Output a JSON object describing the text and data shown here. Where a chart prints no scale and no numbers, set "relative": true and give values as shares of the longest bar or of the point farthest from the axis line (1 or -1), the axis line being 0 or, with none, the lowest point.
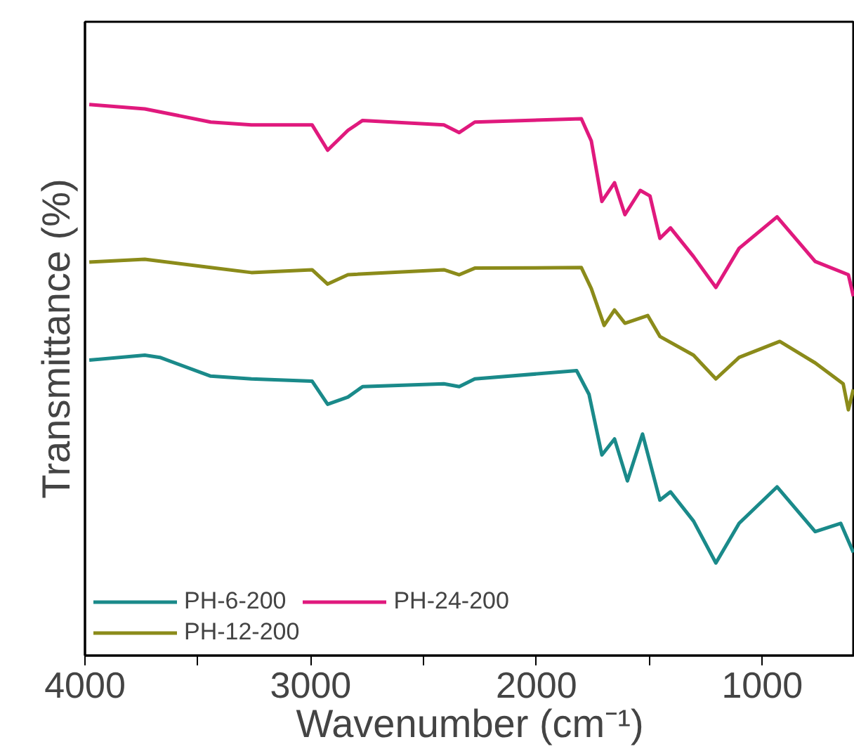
{
  "chart_data": {
    "type": "line",
    "relative": true,
    "xlabel": "Wavenumber (cm⁻¹)",
    "ylabel": "Transmittance (%)",
    "xlim": [
      4000,
      590
    ],
    "xticks": [
      4000,
      {
        "value": 3500,
        "label": null
      },
      3000,
      {
        "value": 2500,
        "label": null
      },
      2000,
      {
        "value": 1500,
        "label": null
      },
      1000
    ],
    "tick_labels": "x",
    "legend": "bottom left",
    "grid": false,
    "line_style": "solid",
    "series": [
      {
        "name": "PH-6-200",
        "color": "#1a8a8a",
        "x": [
          3981,
          3735,
          3668,
          3443,
          3263,
          2994,
          2925,
          2835,
          2770,
          2410,
          2342,
          2273,
          1822,
          1767,
          1710,
          1654,
          1597,
          1530,
          1453,
          1406,
          1304,
          1205,
          1102,
          934,
          765,
          652,
          596
        ],
        "values": [
          0.536,
          0.545,
          0.541,
          0.507,
          0.502,
          0.498,
          0.456,
          0.469,
          0.488,
          0.493,
          0.488,
          0.502,
          0.517,
          0.474,
          0.364,
          0.393,
          0.317,
          0.402,
          0.282,
          0.297,
          0.244,
          0.168,
          0.24,
          0.306,
          0.225,
          0.24,
          0.187
        ]
      },
      {
        "name": "PH-12-200",
        "color": "#8b8b1a",
        "x": [
          3981,
          3735,
          3443,
          3263,
          2994,
          2925,
          2835,
          2410,
          2342,
          2273,
          1801,
          1757,
          1700,
          1654,
          1608,
          1507,
          1453,
          1304,
          1205,
          1102,
          922,
          765,
          641,
          618,
          596
        ],
        "values": [
          0.714,
          0.719,
          0.704,
          0.695,
          0.7,
          0.674,
          0.691,
          0.7,
          0.691,
          0.703,
          0.704,
          0.666,
          0.599,
          0.627,
          0.603,
          0.617,
          0.579,
          0.545,
          0.502,
          0.541,
          0.57,
          0.531,
          0.493,
          0.446,
          0.483
        ]
      },
      {
        "name": "PH-24-200",
        "color": "#e0197d",
        "x": [
          3981,
          3735,
          3443,
          3263,
          2994,
          2925,
          2835,
          2770,
          2410,
          2342,
          2273,
          1801,
          1757,
          1710,
          1654,
          1608,
          1540,
          1497,
          1453,
          1406,
          1304,
          1205,
          1102,
          934,
          765,
          618,
          596
        ],
        "values": [
          1.0,
          0.992,
          0.968,
          0.963,
          0.963,
          0.917,
          0.953,
          0.971,
          0.963,
          0.949,
          0.968,
          0.974,
          0.934,
          0.824,
          0.858,
          0.8,
          0.844,
          0.834,
          0.757,
          0.776,
          0.724,
          0.668,
          0.739,
          0.796,
          0.715,
          0.691,
          0.652
        ]
      }
    ]
  }
}
